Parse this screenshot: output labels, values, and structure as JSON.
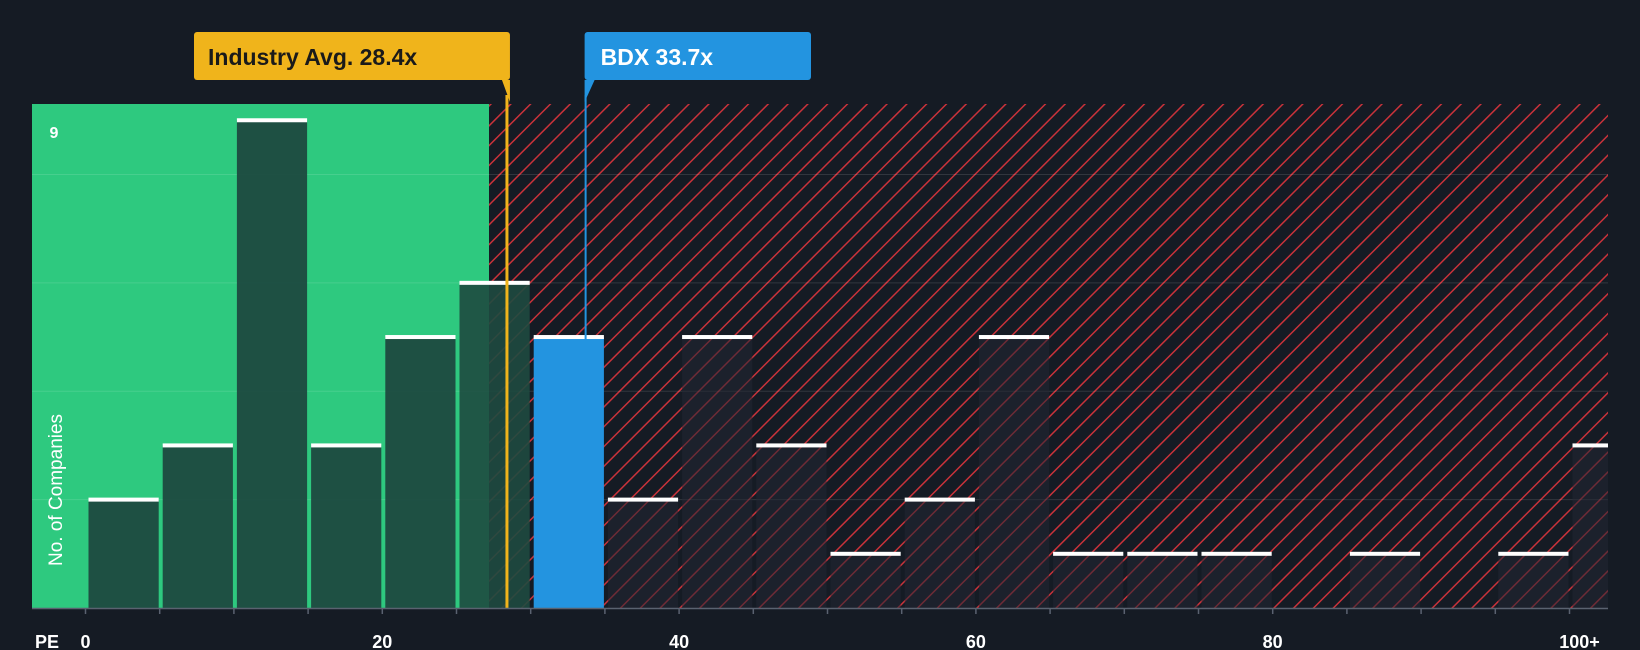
{
  "chart_data": {
    "type": "bar",
    "x_label": "PE",
    "y_label": "No. of Companies",
    "y_max_label": "9",
    "x_ticks": [
      "0",
      "20",
      "40",
      "60",
      "80",
      "100+"
    ],
    "x_tick_values": [
      0,
      20,
      40,
      60,
      80,
      100
    ],
    "bin_width": 5,
    "bins": [
      {
        "start": 0,
        "count": 2
      },
      {
        "start": 5,
        "count": 3
      },
      {
        "start": 10,
        "count": 9
      },
      {
        "start": 15,
        "count": 3
      },
      {
        "start": 20,
        "count": 5
      },
      {
        "start": 25,
        "count": 6
      },
      {
        "start": 30,
        "count": 5
      },
      {
        "start": 35,
        "count": 2
      },
      {
        "start": 40,
        "count": 5
      },
      {
        "start": 45,
        "count": 3
      },
      {
        "start": 50,
        "count": 1
      },
      {
        "start": 55,
        "count": 2
      },
      {
        "start": 60,
        "count": 5
      },
      {
        "start": 65,
        "count": 1
      },
      {
        "start": 70,
        "count": 1
      },
      {
        "start": 75,
        "count": 1
      },
      {
        "start": 80,
        "count": 0
      },
      {
        "start": 85,
        "count": 1
      },
      {
        "start": 90,
        "count": 0
      },
      {
        "start": 95,
        "count": 1
      },
      {
        "start": 100,
        "count": 3
      }
    ],
    "y_range": [
      0,
      9.3
    ],
    "industry_avg": {
      "label": "Industry Avg. 28.4x",
      "value": 28.4
    },
    "company": {
      "label": "BDX 33.7x",
      "value": 33.7,
      "bin_start": 30
    },
    "colors": {
      "background": "#151b24",
      "fair_zone": "#2ec97f",
      "bar_in_zone": "#1e4a40",
      "bar_hatched": "#222733",
      "hatch_line": "#d9363e",
      "company_bar": "#2394e0",
      "industry_flag": "#f0b41b",
      "company_flag": "#2394e0",
      "bar_cap": "#ffffff",
      "axis_text": "#ffffff"
    }
  }
}
